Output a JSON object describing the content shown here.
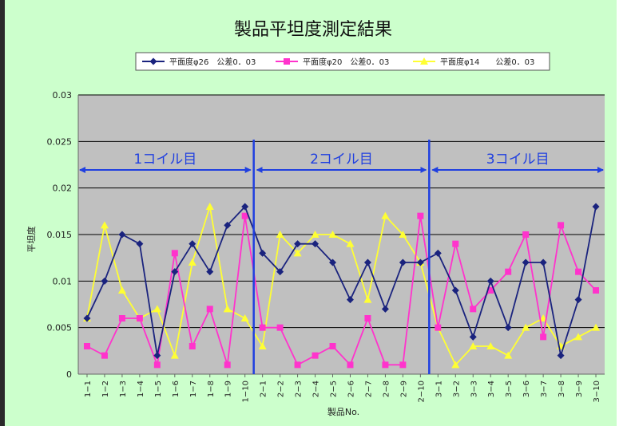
{
  "chart_data": {
    "type": "line",
    "title": "製品平坦度測定結果",
    "xlabel": "製品No.",
    "ylabel": "平坦度",
    "ylim": [
      0,
      0.03
    ],
    "yticks": [
      "0",
      "0.005",
      "0.01",
      "0.015",
      "0.02",
      "0.025",
      "0.03"
    ],
    "ytick_values": [
      0,
      0.005,
      0.01,
      0.015,
      0.02,
      0.025,
      0.03
    ],
    "grid": true,
    "legend_position": "top",
    "categories": [
      "1−1",
      "1−2",
      "1−3",
      "1−4",
      "1−5",
      "1−6",
      "1−7",
      "1−8",
      "1−9",
      "1−10",
      "2−1",
      "2−2",
      "2−3",
      "2−4",
      "2−5",
      "2−6",
      "2−7",
      "2−8",
      "2−9",
      "2−10",
      "3−1",
      "3−2",
      "3−3",
      "3−4",
      "3−5",
      "3−6",
      "3−7",
      "3−8",
      "3−9",
      "3−10"
    ],
    "series": [
      {
        "name": "平面度φ26　公差0．03",
        "color": "#1a237e",
        "marker": "diamond",
        "values": [
          0.006,
          0.01,
          0.015,
          0.014,
          0.002,
          0.011,
          0.014,
          0.011,
          0.016,
          0.018,
          0.013,
          0.011,
          0.014,
          0.014,
          0.012,
          0.008,
          0.012,
          0.007,
          0.012,
          0.012,
          0.013,
          0.009,
          0.004,
          0.01,
          0.005,
          0.012,
          0.012,
          0.002,
          0.008,
          0.018
        ]
      },
      {
        "name": "平面度φ20　公差0．03",
        "color": "#ff33cc",
        "marker": "square",
        "values": [
          0.003,
          0.002,
          0.006,
          0.006,
          0.001,
          0.013,
          0.003,
          0.007,
          0.001,
          0.017,
          0.005,
          0.005,
          0.001,
          0.002,
          0.003,
          0.001,
          0.006,
          0.001,
          0.001,
          0.017,
          0.005,
          0.014,
          0.007,
          0.009,
          0.011,
          0.015,
          0.004,
          0.016,
          0.011,
          0.009
        ]
      },
      {
        "name": "平面度φ14　　公差0．03",
        "color": "#ffff33",
        "marker": "triangle",
        "values": [
          0.006,
          0.016,
          0.009,
          0.006,
          0.007,
          0.002,
          0.012,
          0.018,
          0.007,
          0.006,
          0.003,
          0.015,
          0.013,
          0.015,
          0.015,
          0.014,
          0.008,
          0.017,
          0.015,
          0.012,
          0.005,
          0.001,
          0.003,
          0.003,
          0.002,
          0.005,
          0.006,
          0.003,
          0.004,
          0.005
        ]
      }
    ],
    "annotations": [
      {
        "label": "1コイル目",
        "from_category": "1−1",
        "to_category": "1−10"
      },
      {
        "label": "2コイル目",
        "from_category": "2−1",
        "to_category": "2−10"
      },
      {
        "label": "3コイル目",
        "from_category": "3−1",
        "to_category": "3−10"
      }
    ],
    "divider_after_categories": [
      "1−10",
      "2−10"
    ],
    "annotation_color": "#1f3fe0",
    "plot_bg": "#c0c0c0",
    "panel_bg": "#ccffcc"
  }
}
